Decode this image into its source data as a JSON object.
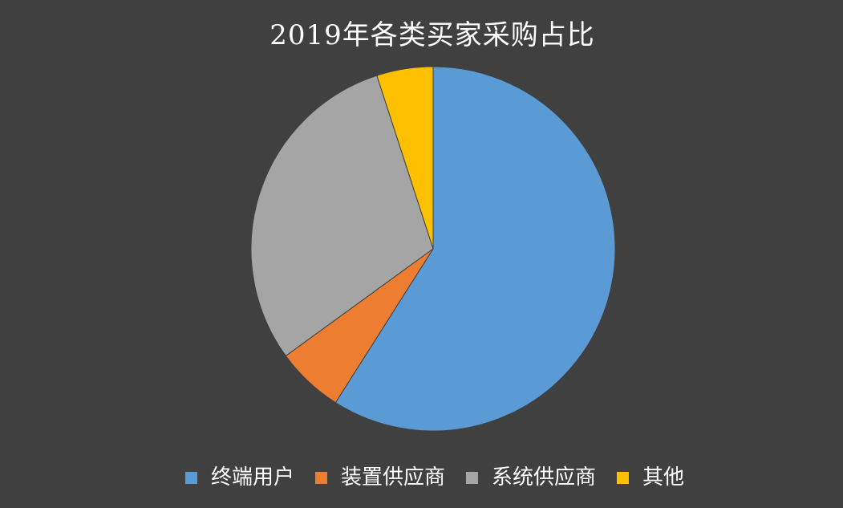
{
  "background_color": "#404040",
  "title": "2019年各类买家采购占比",
  "chart_data": {
    "type": "pie",
    "title": "2019年各类买家采购占比",
    "categories": [
      "终端用户",
      "装置供应商",
      "系统供应商",
      "其他"
    ],
    "values": [
      59,
      6,
      30,
      5
    ],
    "unit": "percent",
    "colors": [
      "#5B9BD5",
      "#ED7D31",
      "#A5A5A5",
      "#FFC000"
    ],
    "start_angle_deg": 0,
    "direction": "clockwise",
    "legend_position": "bottom",
    "data_labels_shown": false,
    "title_color": "#FFFFFF",
    "legend_text_color": "#FFFFFF"
  },
  "legend": {
    "items": [
      {
        "label": "终端用户",
        "color": "#5B9BD5"
      },
      {
        "label": "装置供应商",
        "color": "#ED7D31"
      },
      {
        "label": "系统供应商",
        "color": "#A5A5A5"
      },
      {
        "label": "其他",
        "color": "#FFC000"
      }
    ]
  }
}
